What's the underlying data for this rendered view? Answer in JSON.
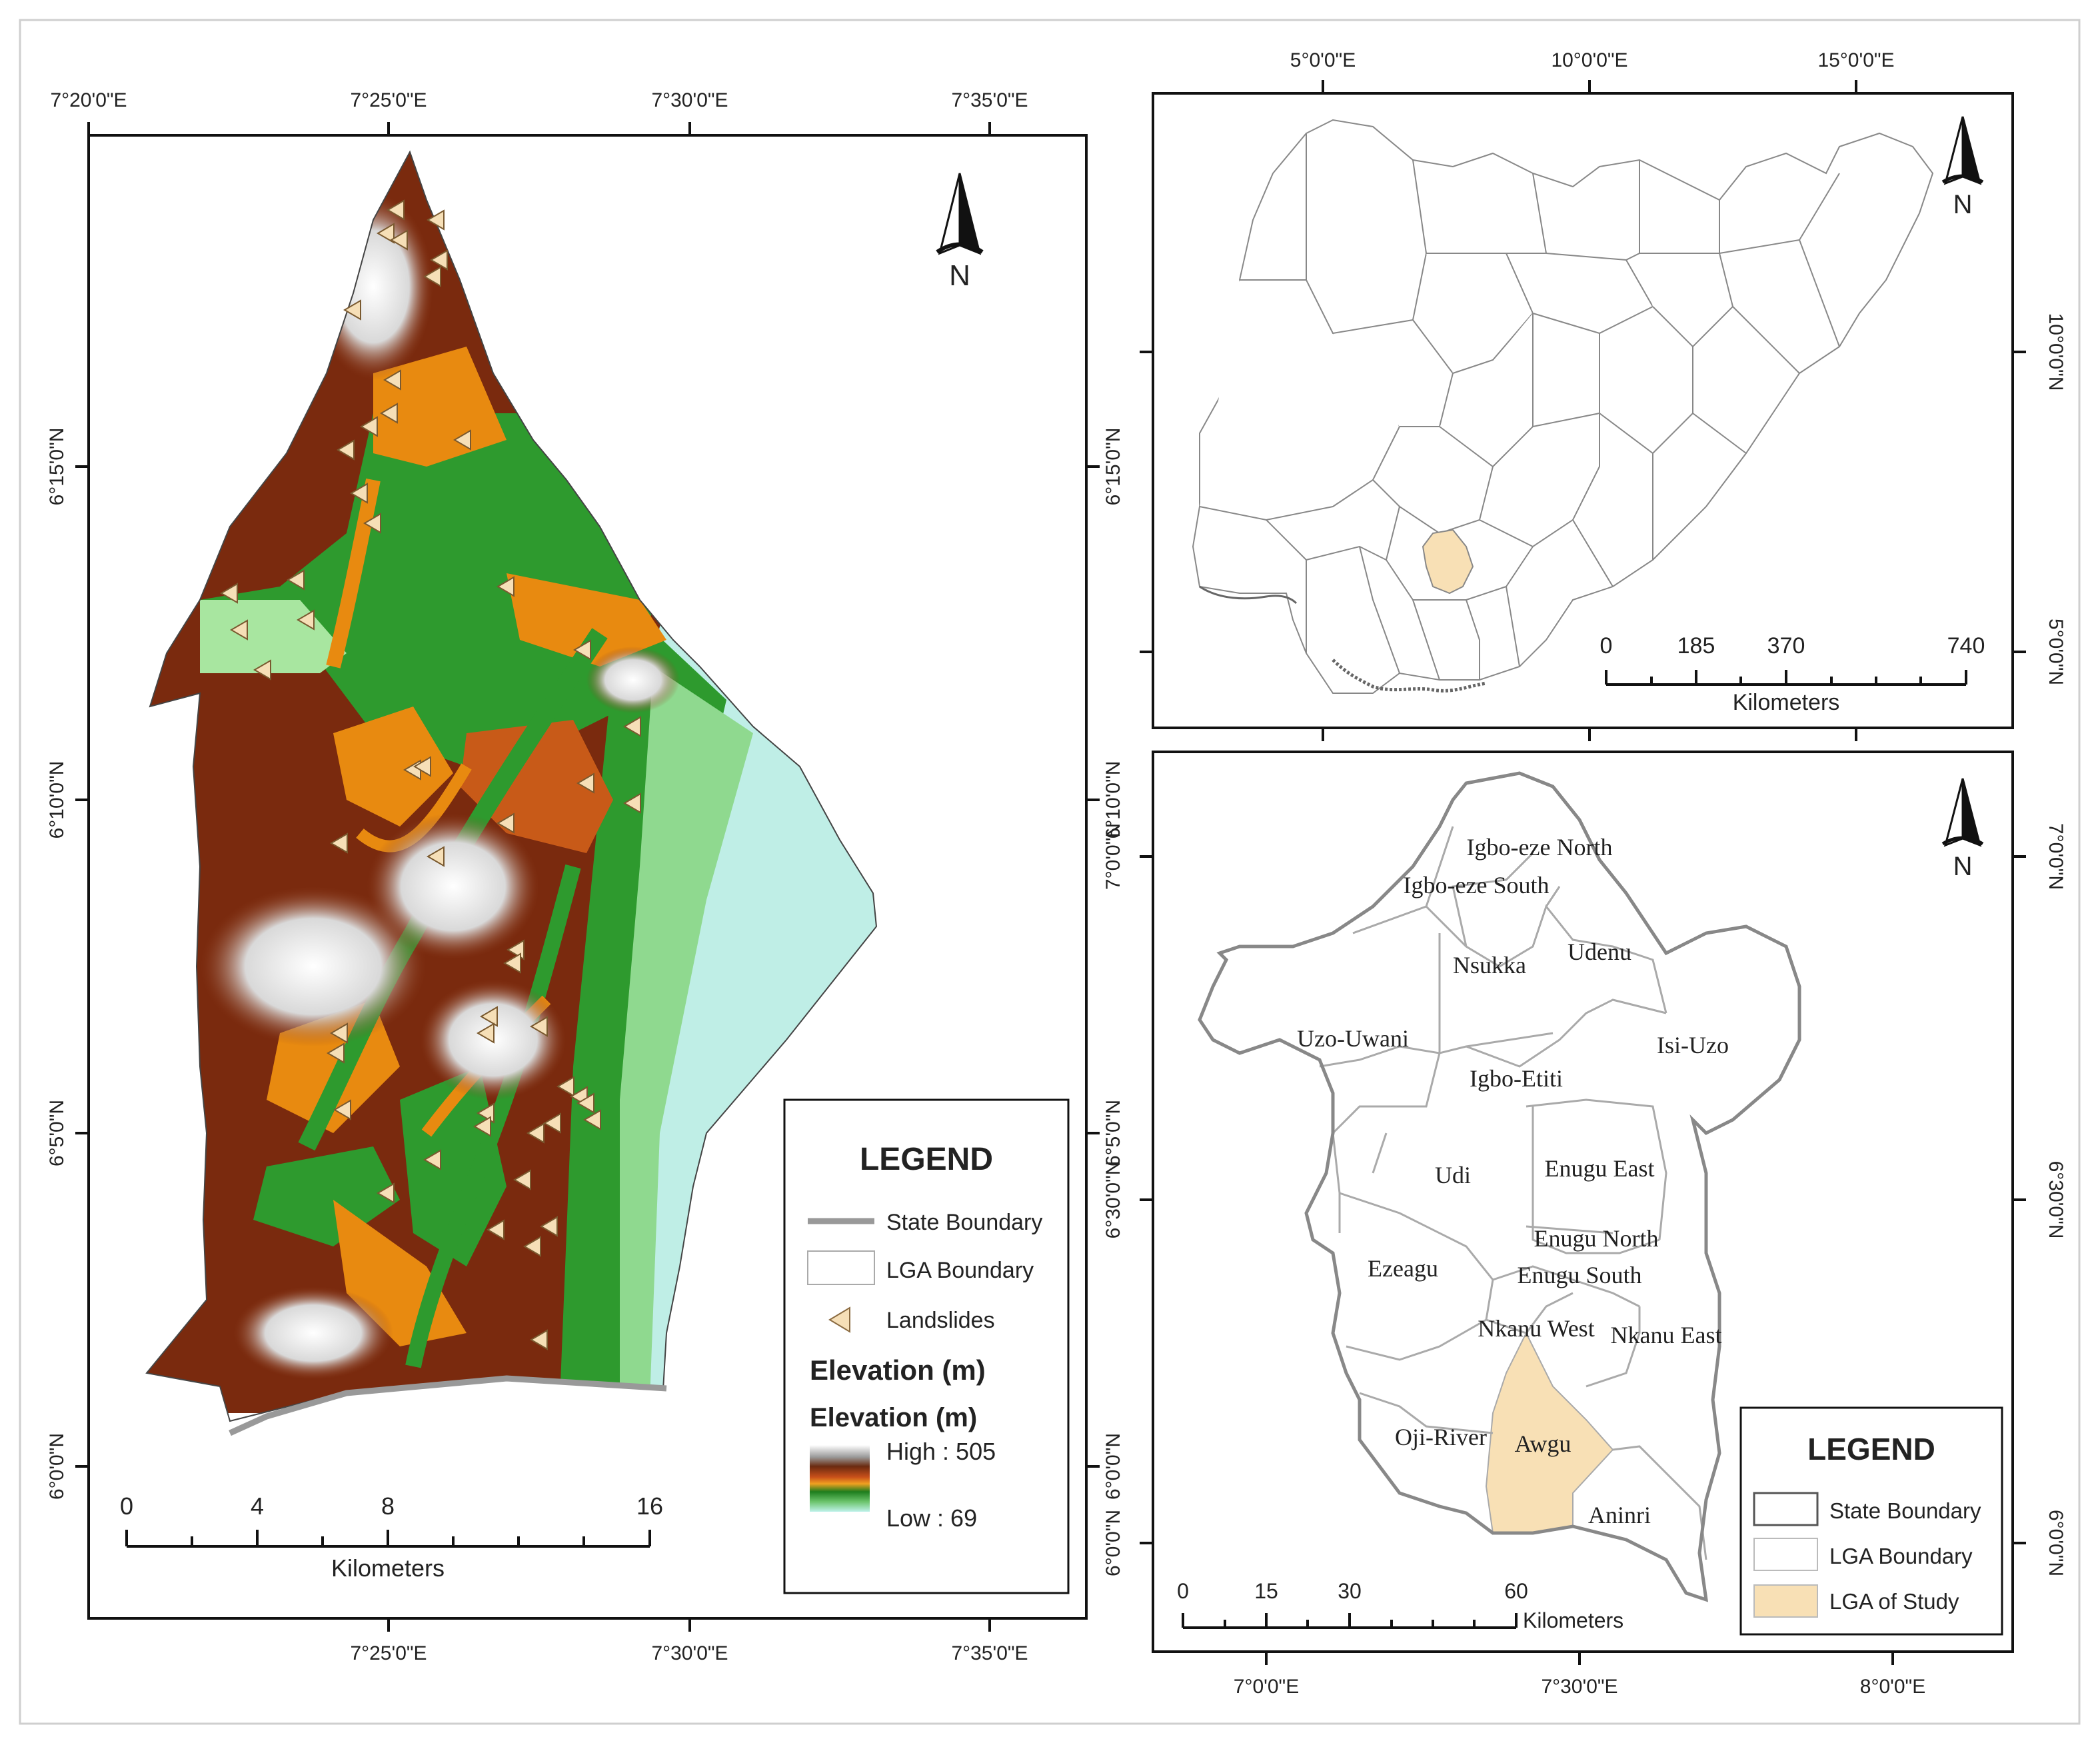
{
  "left_map": {
    "top_ticks": [
      "7°20'0\"E",
      "7°25'0\"E",
      "7°30'0\"E",
      "7°35'0\"E"
    ],
    "bottom_ticks": [
      "7°25'0\"E",
      "7°30'0\"E",
      "7°35'0\"E"
    ],
    "left_ticks": [
      "6°15'0\"N",
      "6°10'0\"N",
      "6°5'0\"N",
      "6°0'0\"N"
    ],
    "right_ticks": [
      "6°15'0\"N",
      "6°10'0\"N",
      "6°5'0\"N",
      "6°0'0\"N"
    ],
    "north": "N",
    "scale": {
      "labels": [
        "0",
        "4",
        "8",
        "16"
      ],
      "unit": "Kilometers"
    },
    "legend": {
      "title": "LEGEND",
      "state_boundary": "State Boundary",
      "lga_boundary": "LGA Boundary",
      "landslides": "Landslides",
      "elevation_heading_1": "Elevation (m)",
      "elevation_heading_2": "Elevation (m)",
      "high": "High : 505",
      "low": "Low : 69"
    },
    "colors": {
      "low": "#9fe6e0",
      "mid": "#2e9a2e",
      "orange": "#e88a10",
      "brown": "#7a2a0e",
      "high": "#ffffff",
      "landslide": "#f6dfb7"
    }
  },
  "nigeria_map": {
    "top_ticks": [
      "5°0'0\"E",
      "10°0'0\"E",
      "15°0'0\"E"
    ],
    "right_ticks": [
      "10°0'0\"N",
      "5°0'0\"N"
    ],
    "north": "N",
    "scale": {
      "labels": [
        "0",
        "185",
        "370",
        "740"
      ],
      "unit": "Kilometers"
    },
    "highlight_color": "#f8e0b5"
  },
  "enugu_map": {
    "bottom_ticks": [
      "7°0'0\"E",
      "7°30'0\"E",
      "8°0'0\"E"
    ],
    "left_ticks": [
      "7°0'0\"N",
      "6°30'0\"N",
      "6°0'0\"N"
    ],
    "right_ticks": [
      "7°0'0\"N",
      "6°30'0\"N",
      "6°0'0\"N"
    ],
    "north": "N",
    "lgas": [
      "Igbo-eze North",
      "Igbo-eze South",
      "Udenu",
      "Nsukka",
      "Uzo-Uwani",
      "Isi-Uzo",
      "Igbo-Etiti",
      "Udi",
      "Enugu East",
      "Enugu North",
      "Ezeagu",
      "Enugu South",
      "Nkanu West",
      "Nkanu East",
      "Oji-River",
      "Awgu",
      "Aninri"
    ],
    "scale": {
      "labels": [
        "0",
        "15",
        "30",
        "60"
      ],
      "unit": "Kilometers"
    },
    "legend": {
      "title": "LEGEND",
      "state_boundary": "State Boundary",
      "lga_boundary": "LGA Boundary",
      "lga_of_study": "LGA of Study"
    },
    "highlight_color": "#f8e0b5"
  }
}
